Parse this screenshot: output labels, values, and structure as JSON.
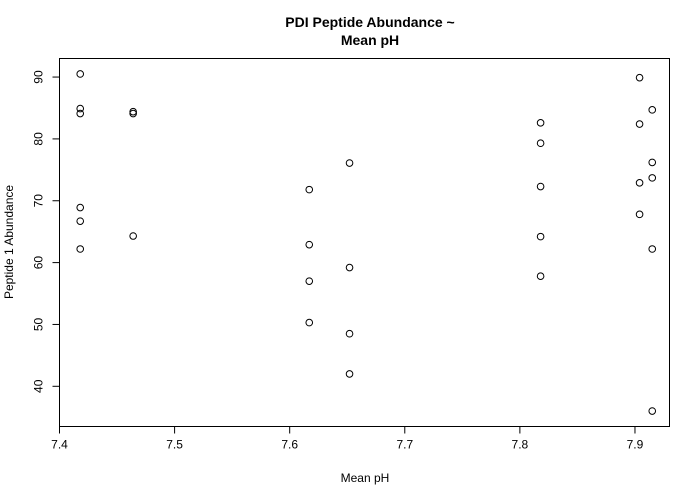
{
  "chart_data": {
    "type": "scatter",
    "title_lines": [
      "PDI Peptide Abundance ~",
      "Mean pH"
    ],
    "xlabel": "Mean pH",
    "ylabel": "Peptide 1 Abundance",
    "xlim": [
      7.4,
      7.93
    ],
    "ylim": [
      33.5,
      93
    ],
    "x_ticks": [
      7.4,
      7.5,
      7.6,
      7.7,
      7.8,
      7.9
    ],
    "x_tick_labels": [
      "7.4",
      "7.5",
      "7.6",
      "7.7",
      "7.8",
      "7.9"
    ],
    "y_ticks": [
      40,
      50,
      60,
      70,
      80,
      90
    ],
    "y_tick_labels": [
      "40",
      "50",
      "60",
      "70",
      "80",
      "90"
    ],
    "grid": false,
    "points": [
      {
        "x": 7.418,
        "y": 90.5
      },
      {
        "x": 7.418,
        "y": 84.9
      },
      {
        "x": 7.418,
        "y": 84.1
      },
      {
        "x": 7.418,
        "y": 68.9
      },
      {
        "x": 7.418,
        "y": 66.7
      },
      {
        "x": 7.418,
        "y": 62.2
      },
      {
        "x": 7.464,
        "y": 84.4
      },
      {
        "x": 7.464,
        "y": 84.1
      },
      {
        "x": 7.464,
        "y": 64.3
      },
      {
        "x": 7.617,
        "y": 71.8
      },
      {
        "x": 7.617,
        "y": 62.9
      },
      {
        "x": 7.617,
        "y": 57.0
      },
      {
        "x": 7.617,
        "y": 50.3
      },
      {
        "x": 7.652,
        "y": 76.1
      },
      {
        "x": 7.652,
        "y": 59.2
      },
      {
        "x": 7.652,
        "y": 48.5
      },
      {
        "x": 7.652,
        "y": 42.0
      },
      {
        "x": 7.818,
        "y": 82.6
      },
      {
        "x": 7.818,
        "y": 79.3
      },
      {
        "x": 7.818,
        "y": 72.3
      },
      {
        "x": 7.818,
        "y": 64.2
      },
      {
        "x": 7.818,
        "y": 57.8
      },
      {
        "x": 7.904,
        "y": 89.9
      },
      {
        "x": 7.904,
        "y": 82.4
      },
      {
        "x": 7.904,
        "y": 72.9
      },
      {
        "x": 7.904,
        "y": 67.8
      },
      {
        "x": 7.915,
        "y": 84.7
      },
      {
        "x": 7.915,
        "y": 76.2
      },
      {
        "x": 7.915,
        "y": 73.7
      },
      {
        "x": 7.915,
        "y": 62.2
      },
      {
        "x": 7.915,
        "y": 36.0
      }
    ]
  }
}
